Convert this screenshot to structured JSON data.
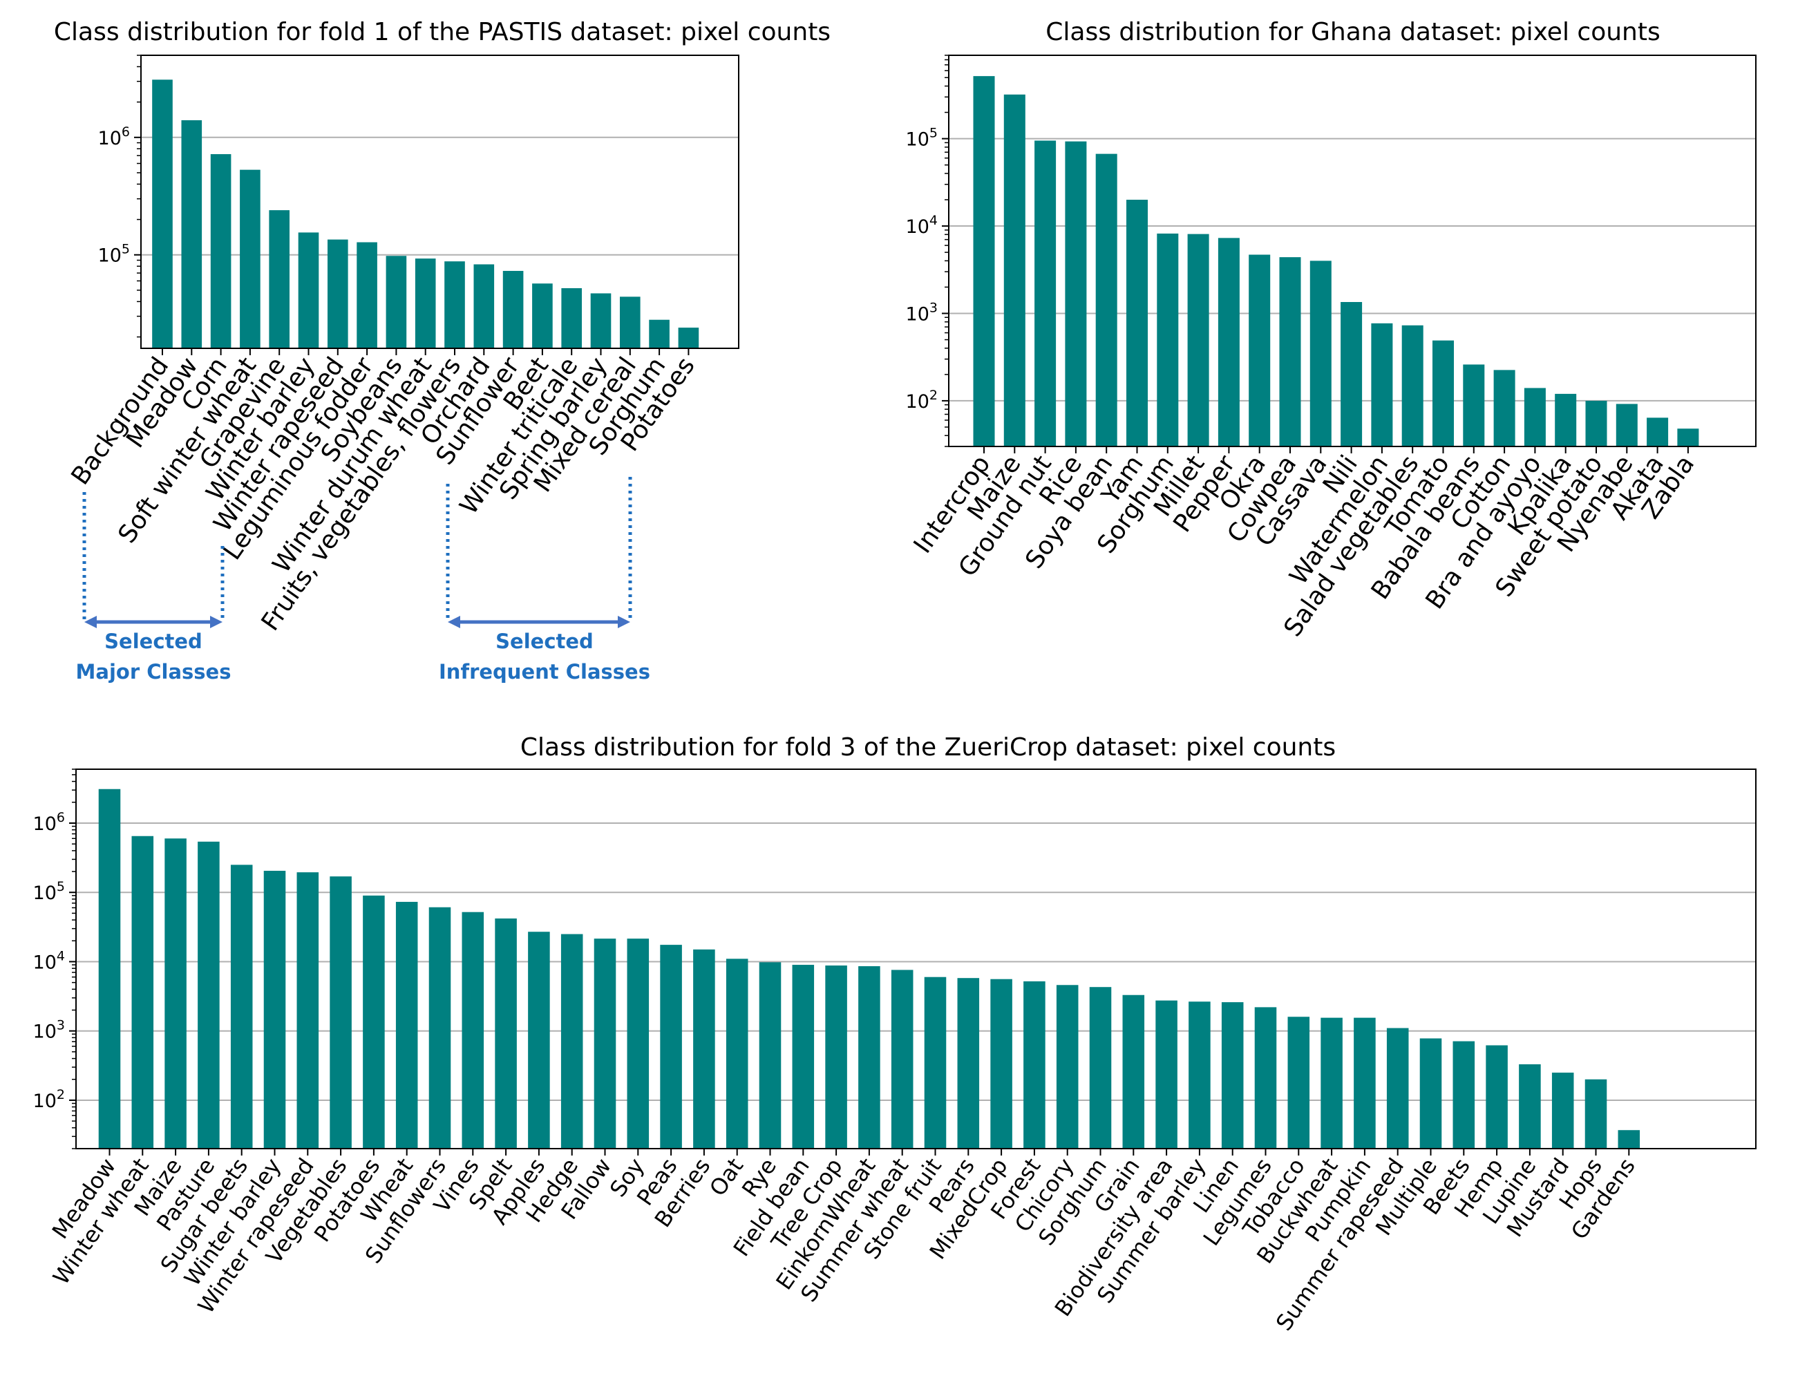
{
  "accent_color": "#008080",
  "annotation_color": "#1f6fbf",
  "arrow_color": "#4472c4",
  "annotations": {
    "major": [
      "Selected",
      "Major Classes"
    ],
    "infrequent": [
      "Selected",
      "Infrequent Classes"
    ]
  },
  "chart_data": [
    {
      "type": "bar",
      "title": "Class distribution for fold 1 of the PASTIS dataset: pixel counts",
      "yscale": "log",
      "ylim": [
        16000,
        5000000
      ],
      "ytick_exponents": [
        5,
        6
      ],
      "grid": "horizontal",
      "categories": [
        "Background",
        "Meadow",
        "Corn",
        "Soft winter wheat",
        "Grapevine",
        "Winter barley",
        "Winter rapeseed",
        "Leguminous fodder",
        "Soybeans",
        "Winter durum wheat",
        "Fruits,  vegetables, flowers",
        "Orchard",
        "Sunflower",
        "Beet",
        "Winter triticale",
        "Spring barley",
        "Mixed cereal",
        "Sorghum",
        "Potatoes"
      ],
      "values": [
        3100000,
        1400000,
        720000,
        530000,
        240000,
        155000,
        135000,
        128000,
        98000,
        93000,
        88000,
        83000,
        73000,
        57000,
        52000,
        47000,
        44000,
        28000,
        24000
      ]
    },
    {
      "type": "bar",
      "title": "Class distribution for Ghana dataset: pixel counts",
      "yscale": "log",
      "ylim": [
        30,
        900000
      ],
      "ytick_exponents": [
        2,
        3,
        4,
        5
      ],
      "grid": "horizontal",
      "categories": [
        "Intercrop",
        "Maize",
        "Ground nut",
        "Rice",
        "Soya bean",
        "Yam",
        "Sorghum",
        "Millet",
        "Pepper",
        "Okra",
        "Cowpea",
        "Cassava",
        "Nili",
        "Watermelon",
        "Salad vegetables",
        "Tomato",
        "Babala beans",
        "Cotton",
        "Bra and ayoyo",
        "Kpalika",
        "Sweet potato",
        "Nyenabe",
        "Akata",
        "Zabla"
      ],
      "values": [
        520000,
        320000,
        95000,
        93000,
        67000,
        20000,
        8200,
        8100,
        7300,
        4700,
        4400,
        4000,
        1350,
        770,
        730,
        490,
        260,
        225,
        140,
        120,
        100,
        92,
        64,
        48
      ]
    },
    {
      "type": "bar",
      "title": "Class distribution for fold 3 of the ZueriCrop dataset: pixel counts",
      "yscale": "log",
      "ylim": [
        20,
        6000000
      ],
      "ytick_exponents": [
        2,
        3,
        4,
        5,
        6
      ],
      "grid": "horizontal",
      "categories": [
        "Meadow",
        "Winter wheat",
        "Maize",
        "Pasture",
        "Sugar beets",
        "Winter barley",
        "Winter rapeseed",
        "Vegetables",
        "Potatoes",
        "Wheat",
        "Sunflowers",
        "Vines",
        "Spelt",
        "Apples",
        "Hedge",
        "Fallow",
        "Soy",
        "Peas",
        "Berries",
        "Oat",
        "Rye",
        "Field bean",
        "Tree Crop",
        "EinkornWheat",
        "Summer wheat",
        "Stone fruit",
        "Pears",
        "MixedCrop",
        "Forest",
        "Chicory",
        "Sorghum",
        "Grain",
        "Biodiversity area",
        "Summer barley",
        "Linen",
        "Legumes",
        "Tobacco",
        "Buckwheat",
        "Pumpkin",
        "Summer rapeseed",
        "Multiple",
        "Beets",
        "Hemp",
        "Lupine",
        "Mustard",
        "Hops",
        "Gardens"
      ],
      "values": [
        3100000,
        650000,
        600000,
        540000,
        250000,
        205000,
        195000,
        170000,
        90000,
        73000,
        61000,
        52000,
        42000,
        27000,
        25000,
        21500,
        21500,
        17500,
        15000,
        11000,
        9800,
        9000,
        8800,
        8600,
        7600,
        6000,
        5800,
        5600,
        5200,
        4600,
        4300,
        3300,
        2750,
        2650,
        2600,
        2200,
        1600,
        1550,
        1550,
        1100,
        780,
        710,
        620,
        330,
        250,
        200,
        37
      ]
    }
  ]
}
